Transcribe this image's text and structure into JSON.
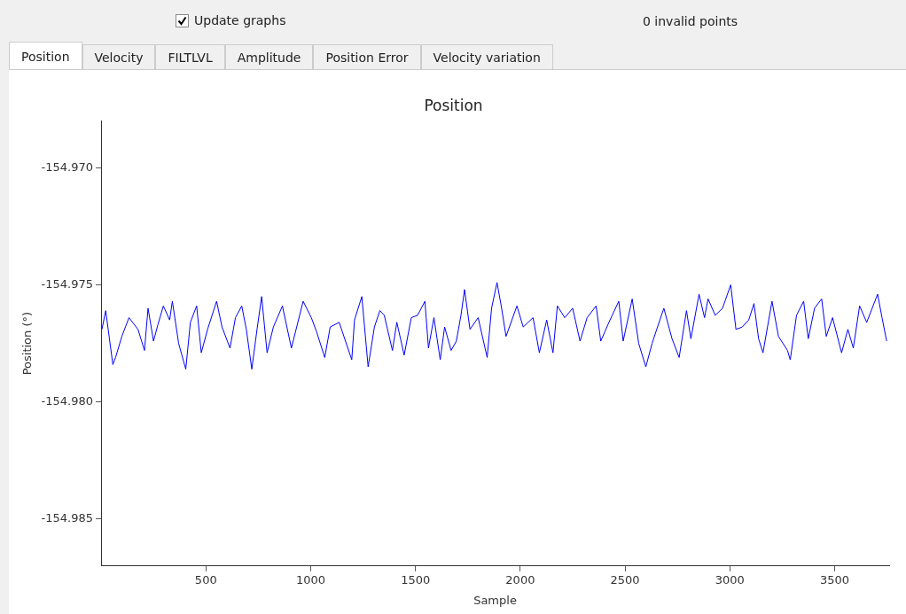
{
  "chart_data": {
    "type": "line",
    "title": "Position",
    "xlabel": "Sample",
    "ylabel": "Position (°)",
    "annotations": [
      "Update graphs",
      "0 invalid points",
      "Position",
      "Velocity",
      "FILTLVL",
      "Amplitude",
      "Position Error",
      "Velocity variation"
    ],
    "x": [
      4,
      22,
      56,
      69,
      99,
      133,
      176,
      207,
      224,
      250,
      271,
      297,
      327,
      340,
      370,
      404,
      426,
      456,
      478,
      508,
      551,
      577,
      615,
      641,
      671,
      693,
      719,
      744,
      766,
      792,
      822,
      865,
      908,
      964,
      1003,
      1028,
      1067,
      1093,
      1136,
      1196,
      1209,
      1244,
      1274,
      1304,
      1330,
      1351,
      1390,
      1411,
      1446,
      1480,
      1510,
      1545,
      1562,
      1588,
      1618,
      1639,
      1670,
      1695,
      1717,
      1734,
      1760,
      1799,
      1842,
      1863,
      1889,
      1911,
      1932,
      1984,
      2014,
      2061,
      2091,
      2126,
      2156,
      2177,
      2212,
      2250,
      2285,
      2319,
      2362,
      2384,
      2423,
      2470,
      2491,
      2534,
      2565,
      2599,
      2629,
      2651,
      2685,
      2724,
      2758,
      2793,
      2814,
      2853,
      2879,
      2896,
      2930,
      2965,
      3004,
      3029,
      3059,
      3090,
      3115,
      3137,
      3158,
      3201,
      3232,
      3275,
      3288,
      3318,
      3352,
      3374,
      3404,
      3438,
      3460,
      3490,
      3533,
      3563,
      3589,
      3619,
      3653,
      3705,
      3726,
      3748
    ],
    "series": [
      {
        "color": "#0000ff",
        "values": [
          -154.9769,
          -154.9761,
          -154.9784,
          -154.9781,
          -154.9772,
          -154.9764,
          -154.9769,
          -154.9778,
          -154.976,
          -154.9774,
          -154.9767,
          -154.9759,
          -154.9765,
          -154.9757,
          -154.9775,
          -154.9786,
          -154.9766,
          -154.9759,
          -154.9779,
          -154.9769,
          -154.9757,
          -154.9768,
          -154.9777,
          -154.9764,
          -154.9759,
          -154.9769,
          -154.9786,
          -154.9769,
          -154.9755,
          -154.9779,
          -154.9768,
          -154.9759,
          -154.9777,
          -154.9757,
          -154.9764,
          -154.977,
          -154.9781,
          -154.9768,
          -154.9766,
          -154.9782,
          -154.9765,
          -154.9755,
          -154.9785,
          -154.9768,
          -154.9761,
          -154.9763,
          -154.9778,
          -154.9766,
          -154.978,
          -154.9764,
          -154.9763,
          -154.9757,
          -154.9777,
          -154.9764,
          -154.9782,
          -154.9768,
          -154.9778,
          -154.9774,
          -154.9763,
          -154.9752,
          -154.9769,
          -154.9764,
          -154.9781,
          -154.976,
          -154.9749,
          -154.976,
          -154.9772,
          -154.9759,
          -154.9768,
          -154.9764,
          -154.9779,
          -154.9765,
          -154.9779,
          -154.9759,
          -154.9764,
          -154.976,
          -154.9774,
          -154.9764,
          -154.9759,
          -154.9774,
          -154.9766,
          -154.9757,
          -154.9774,
          -154.9756,
          -154.9775,
          -154.9785,
          -154.9775,
          -154.9769,
          -154.976,
          -154.9773,
          -154.9781,
          -154.9761,
          -154.9773,
          -154.9754,
          -154.9764,
          -154.9756,
          -154.9763,
          -154.976,
          -154.975,
          -154.9769,
          -154.9768,
          -154.9765,
          -154.9758,
          -154.9773,
          -154.9779,
          -154.9757,
          -154.9772,
          -154.9778,
          -154.9782,
          -154.9763,
          -154.9757,
          -154.9773,
          -154.976,
          -154.9756,
          -154.9772,
          -154.9764,
          -154.9779,
          -154.9769,
          -154.9777,
          -154.9759,
          -154.9766,
          -154.9754,
          -154.9764,
          -154.9774
        ]
      }
    ],
    "xlim": [
      0,
      3760
    ],
    "xticks": [
      500,
      1000,
      1500,
      2000,
      2500,
      3000,
      3500
    ],
    "ylim": [
      -154.987,
      -154.968
    ],
    "yticks": [
      {
        "value": -154.985,
        "label": "-154.985"
      },
      {
        "value": -154.98,
        "label": "-154.980"
      },
      {
        "value": -154.975,
        "label": "-154.975"
      },
      {
        "value": -154.97,
        "label": "-154.970"
      }
    ],
    "grid": false,
    "legend": false
  }
}
